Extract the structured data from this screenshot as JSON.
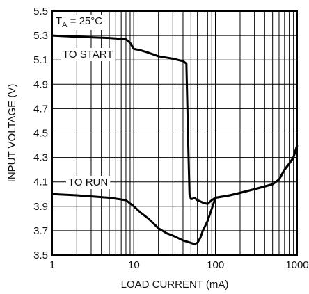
{
  "chart_data": {
    "type": "line",
    "xscale": "log",
    "xlim": [
      1,
      1000
    ],
    "ylim": [
      3.5,
      5.5
    ],
    "grid": true,
    "xlabel": "LOAD CURRENT (mA)",
    "ylabel": "INPUT VOLTAGE (V)",
    "x_ticks": [
      1,
      10,
      100,
      1000
    ],
    "x_tick_labels": [
      "1",
      "10",
      "100",
      "1000"
    ],
    "y_ticks": [
      3.5,
      3.7,
      3.9,
      4.1,
      4.3,
      4.5,
      4.7,
      4.9,
      5.1,
      5.3,
      5.5
    ],
    "y_tick_labels": [
      "3.5",
      "3.7",
      "3.9",
      "4.1",
      "4.3",
      "4.5",
      "4.7",
      "4.9",
      "5.1",
      "5.3",
      "5.5"
    ],
    "condition": {
      "prefix": "T",
      "subscript": "A",
      "suffix": " = 25°C"
    },
    "series": [
      {
        "label": "TO START",
        "x": [
          1,
          2,
          5,
          8,
          9,
          10,
          12,
          15,
          20,
          30,
          40,
          44,
          46,
          48,
          50,
          52,
          55,
          60,
          65,
          70,
          80,
          90,
          100,
          150,
          200,
          300,
          500,
          600,
          700,
          800,
          900,
          1000
        ],
        "y": [
          5.3,
          5.29,
          5.28,
          5.27,
          5.24,
          5.19,
          5.18,
          5.16,
          5.13,
          5.11,
          5.09,
          5.07,
          4.5,
          4.0,
          3.96,
          3.96,
          3.97,
          3.95,
          3.94,
          3.93,
          3.92,
          3.95,
          3.97,
          3.99,
          4.01,
          4.04,
          4.08,
          4.12,
          4.2,
          4.25,
          4.3,
          4.4
        ]
      },
      {
        "label": "TO RUN",
        "x": [
          1,
          2,
          5,
          8,
          10,
          12,
          15,
          20,
          25,
          30,
          40,
          50,
          55,
          60,
          65,
          70,
          80,
          90,
          100,
          150,
          200,
          300,
          500,
          600,
          700,
          800,
          900,
          1000
        ],
        "y": [
          4.0,
          3.99,
          3.97,
          3.95,
          3.9,
          3.85,
          3.8,
          3.72,
          3.68,
          3.66,
          3.62,
          3.6,
          3.59,
          3.6,
          3.64,
          3.7,
          3.78,
          3.88,
          3.97,
          3.99,
          4.01,
          4.04,
          4.08,
          4.12,
          4.2,
          4.25,
          4.3,
          4.4
        ]
      }
    ]
  }
}
